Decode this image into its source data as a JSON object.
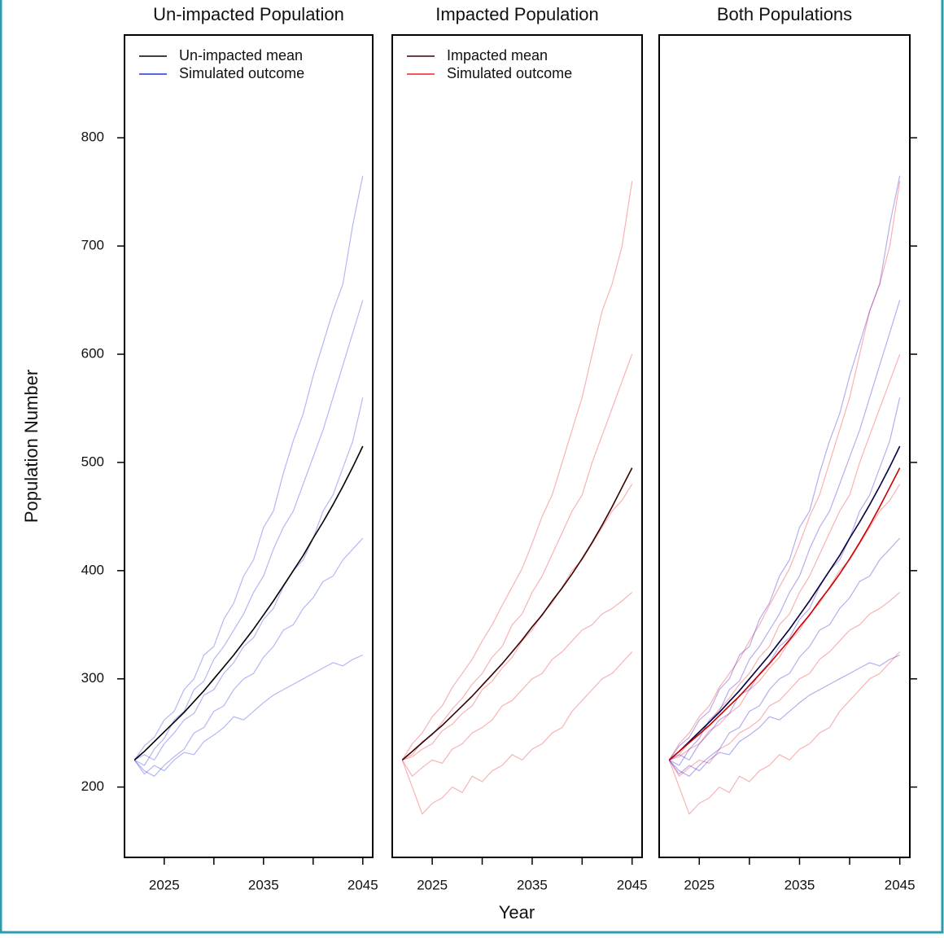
{
  "axis_labels": {
    "y": "Population Number",
    "x": "Year"
  },
  "chart_data": [
    {
      "type": "line",
      "title": "Un-impacted Population",
      "x": [
        2022,
        2023,
        2024,
        2025,
        2026,
        2027,
        2028,
        2029,
        2030,
        2031,
        2032,
        2033,
        2034,
        2035,
        2036,
        2037,
        2038,
        2039,
        2040,
        2041,
        2042,
        2043,
        2044,
        2045
      ],
      "xlim": [
        2021,
        2046
      ],
      "xticks": [
        2025,
        2035,
        2045
      ],
      "xminor": [
        2030,
        2040
      ],
      "ylim": [
        135,
        895
      ],
      "yticks": [
        200,
        300,
        400,
        500,
        600,
        700,
        800
      ],
      "ytick_side": "left",
      "legend": "top-left",
      "series": [
        {
          "name": "Un-impacted mean",
          "color": "#000000",
          "values": [
            225,
            233,
            242,
            251,
            260,
            269,
            279,
            289,
            300,
            311,
            322,
            334,
            346,
            359,
            372,
            386,
            400,
            414,
            430,
            445,
            461,
            478,
            496,
            515
          ]
        },
        {
          "name": "Simulated outcome",
          "color": "#2233dd",
          "runs": [
            {
              "values": [
                225,
                238,
                246,
                262,
                270,
                290,
                300,
                322,
                330,
                355,
                370,
                395,
                410,
                440,
                455,
                490,
                520,
                545,
                580,
                610,
                640,
                665,
                720,
                765
              ]
            },
            {
              "values": [
                225,
                220,
                235,
                245,
                262,
                270,
                290,
                298,
                318,
                330,
                345,
                360,
                380,
                395,
                420,
                440,
                455,
                480,
                505,
                530,
                560,
                590,
                620,
                650
              ]
            },
            {
              "values": [
                225,
                230,
                225,
                240,
                250,
                262,
                268,
                285,
                290,
                305,
                315,
                330,
                338,
                355,
                365,
                385,
                400,
                410,
                430,
                455,
                470,
                495,
                520,
                560
              ]
            },
            {
              "values": [
                225,
                215,
                210,
                220,
                228,
                235,
                250,
                255,
                270,
                275,
                290,
                300,
                305,
                320,
                330,
                345,
                350,
                365,
                375,
                390,
                395,
                410,
                420,
                430
              ]
            },
            {
              "values": [
                225,
                212,
                220,
                215,
                225,
                232,
                230,
                242,
                248,
                255,
                265,
                262,
                270,
                278,
                285,
                290,
                295,
                300,
                305,
                310,
                315,
                312,
                318,
                322
              ]
            }
          ]
        }
      ]
    },
    {
      "type": "line",
      "title": "Impacted Population",
      "x": [
        2022,
        2023,
        2024,
        2025,
        2026,
        2027,
        2028,
        2029,
        2030,
        2031,
        2032,
        2033,
        2034,
        2035,
        2036,
        2037,
        2038,
        2039,
        2040,
        2041,
        2042,
        2043,
        2044,
        2045
      ],
      "xlim": [
        2021,
        2046
      ],
      "xticks": [
        2025,
        2035,
        2045
      ],
      "xminor": [
        2030,
        2040
      ],
      "ylim": [
        135,
        895
      ],
      "legend": "top-left",
      "series": [
        {
          "name": "Impacted mean",
          "color": "#3a0000",
          "values": [
            225,
            233,
            241,
            249,
            257,
            266,
            275,
            284,
            294,
            304,
            314,
            325,
            336,
            348,
            359,
            372,
            384,
            397,
            411,
            426,
            442,
            459,
            477,
            495
          ]
        },
        {
          "name": "Simulated outcome",
          "color": "#ee2222",
          "runs": [
            {
              "values": [
                225,
                240,
                250,
                265,
                275,
                292,
                305,
                318,
                335,
                350,
                368,
                385,
                402,
                425,
                450,
                470,
                500,
                530,
                560,
                600,
                640,
                665,
                700,
                760
              ]
            },
            {
              "values": [
                225,
                230,
                242,
                248,
                260,
                272,
                282,
                295,
                305,
                320,
                330,
                350,
                360,
                380,
                395,
                415,
                435,
                455,
                470,
                500,
                525,
                550,
                575,
                600
              ]
            },
            {
              "values": [
                225,
                228,
                235,
                240,
                252,
                258,
                268,
                275,
                290,
                298,
                310,
                320,
                335,
                345,
                360,
                370,
                385,
                400,
                410,
                425,
                440,
                455,
                465,
                480
              ]
            },
            {
              "values": [
                225,
                210,
                218,
                225,
                222,
                235,
                240,
                250,
                255,
                262,
                275,
                280,
                290,
                300,
                305,
                318,
                325,
                335,
                345,
                350,
                360,
                365,
                372,
                380
              ]
            },
            {
              "values": [
                225,
                200,
                175,
                185,
                190,
                200,
                195,
                210,
                205,
                215,
                220,
                230,
                225,
                235,
                240,
                250,
                255,
                270,
                280,
                290,
                300,
                305,
                315,
                325
              ]
            }
          ]
        }
      ]
    },
    {
      "type": "line",
      "title": "Both Populations",
      "x": [
        2022,
        2023,
        2024,
        2025,
        2026,
        2027,
        2028,
        2029,
        2030,
        2031,
        2032,
        2033,
        2034,
        2035,
        2036,
        2037,
        2038,
        2039,
        2040,
        2041,
        2042,
        2043,
        2044,
        2045
      ],
      "xlim": [
        2021,
        2046
      ],
      "xticks": [
        2025,
        2035,
        2045
      ],
      "xminor": [
        2030,
        2040
      ],
      "ylim": [
        135,
        895
      ],
      "yticks": [
        200,
        300,
        400,
        500,
        600,
        700,
        800
      ],
      "ytick_side": "right",
      "series": [
        {
          "color": "#ee2222",
          "runs": [
            {
              "values": [
                225,
                240,
                250,
                265,
                275,
                292,
                305,
                318,
                335,
                350,
                368,
                385,
                402,
                425,
                450,
                470,
                500,
                530,
                560,
                600,
                640,
                665,
                700,
                760
              ]
            },
            {
              "values": [
                225,
                230,
                242,
                248,
                260,
                272,
                282,
                295,
                305,
                320,
                330,
                350,
                360,
                380,
                395,
                415,
                435,
                455,
                470,
                500,
                525,
                550,
                575,
                600
              ]
            },
            {
              "values": [
                225,
                228,
                235,
                240,
                252,
                258,
                268,
                275,
                290,
                298,
                310,
                320,
                335,
                345,
                360,
                370,
                385,
                400,
                410,
                425,
                440,
                455,
                465,
                480
              ]
            },
            {
              "values": [
                225,
                210,
                218,
                225,
                222,
                235,
                240,
                250,
                255,
                262,
                275,
                280,
                290,
                300,
                305,
                318,
                325,
                335,
                345,
                350,
                360,
                365,
                372,
                380
              ]
            },
            {
              "values": [
                225,
                200,
                175,
                185,
                190,
                200,
                195,
                210,
                205,
                215,
                220,
                230,
                225,
                235,
                240,
                250,
                255,
                270,
                280,
                290,
                300,
                305,
                315,
                325
              ]
            }
          ]
        },
        {
          "color": "#3311cc",
          "runs": [
            {
              "values": [
                225,
                238,
                246,
                262,
                270,
                290,
                300,
                322,
                330,
                355,
                370,
                395,
                410,
                440,
                455,
                490,
                520,
                545,
                580,
                610,
                640,
                665,
                720,
                765
              ]
            },
            {
              "values": [
                225,
                220,
                235,
                245,
                262,
                270,
                290,
                298,
                318,
                330,
                345,
                360,
                380,
                395,
                420,
                440,
                455,
                480,
                505,
                530,
                560,
                590,
                620,
                650
              ]
            },
            {
              "values": [
                225,
                230,
                225,
                240,
                250,
                262,
                268,
                285,
                290,
                305,
                315,
                330,
                338,
                355,
                365,
                385,
                400,
                410,
                430,
                455,
                470,
                495,
                520,
                560
              ]
            },
            {
              "values": [
                225,
                215,
                210,
                220,
                228,
                235,
                250,
                255,
                270,
                275,
                290,
                300,
                305,
                320,
                330,
                345,
                350,
                365,
                375,
                390,
                395,
                410,
                420,
                430
              ]
            },
            {
              "values": [
                225,
                212,
                220,
                215,
                225,
                232,
                230,
                242,
                248,
                255,
                265,
                262,
                270,
                278,
                285,
                290,
                295,
                300,
                305,
                310,
                315,
                312,
                318,
                322
              ]
            }
          ]
        },
        {
          "color": "#000040",
          "values": [
            225,
            233,
            242,
            251,
            260,
            269,
            279,
            289,
            300,
            311,
            322,
            334,
            346,
            359,
            372,
            386,
            400,
            414,
            430,
            445,
            461,
            478,
            496,
            515
          ]
        },
        {
          "color": "#cc0000",
          "values": [
            225,
            233,
            241,
            249,
            257,
            266,
            275,
            284,
            294,
            304,
            314,
            325,
            336,
            348,
            359,
            372,
            384,
            397,
            411,
            426,
            442,
            459,
            477,
            495
          ]
        }
      ]
    }
  ]
}
